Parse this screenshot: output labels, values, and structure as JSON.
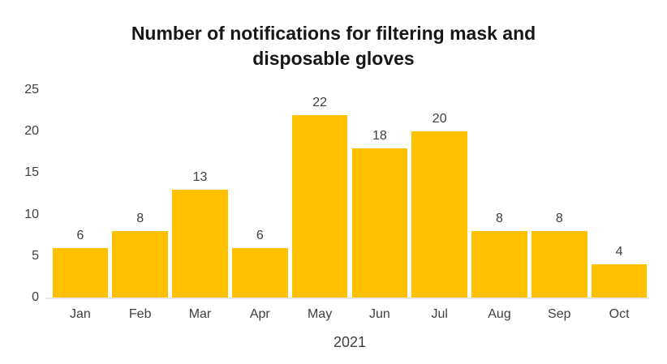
{
  "chart_data": {
    "type": "bar",
    "title": "Number of notifications for filtering mask and disposable gloves",
    "categories": [
      "Jan",
      "Feb",
      "Mar",
      "Apr",
      "May",
      "Jun",
      "Jul",
      "Aug",
      "Sep",
      "Oct"
    ],
    "values": [
      6,
      8,
      13,
      6,
      22,
      18,
      20,
      8,
      8,
      4
    ],
    "xlabel": "2021",
    "ylabel": "",
    "ylim": [
      0,
      25
    ],
    "yticks": [
      0,
      5,
      10,
      15,
      20,
      25
    ],
    "grid": false,
    "legend": false,
    "data_labels": true,
    "colors": {
      "bar": "#FFC000",
      "title_text": "#171717",
      "label_text": "#404040",
      "axis_line": "#F0E4EE",
      "background": "#FFFFFF"
    }
  }
}
